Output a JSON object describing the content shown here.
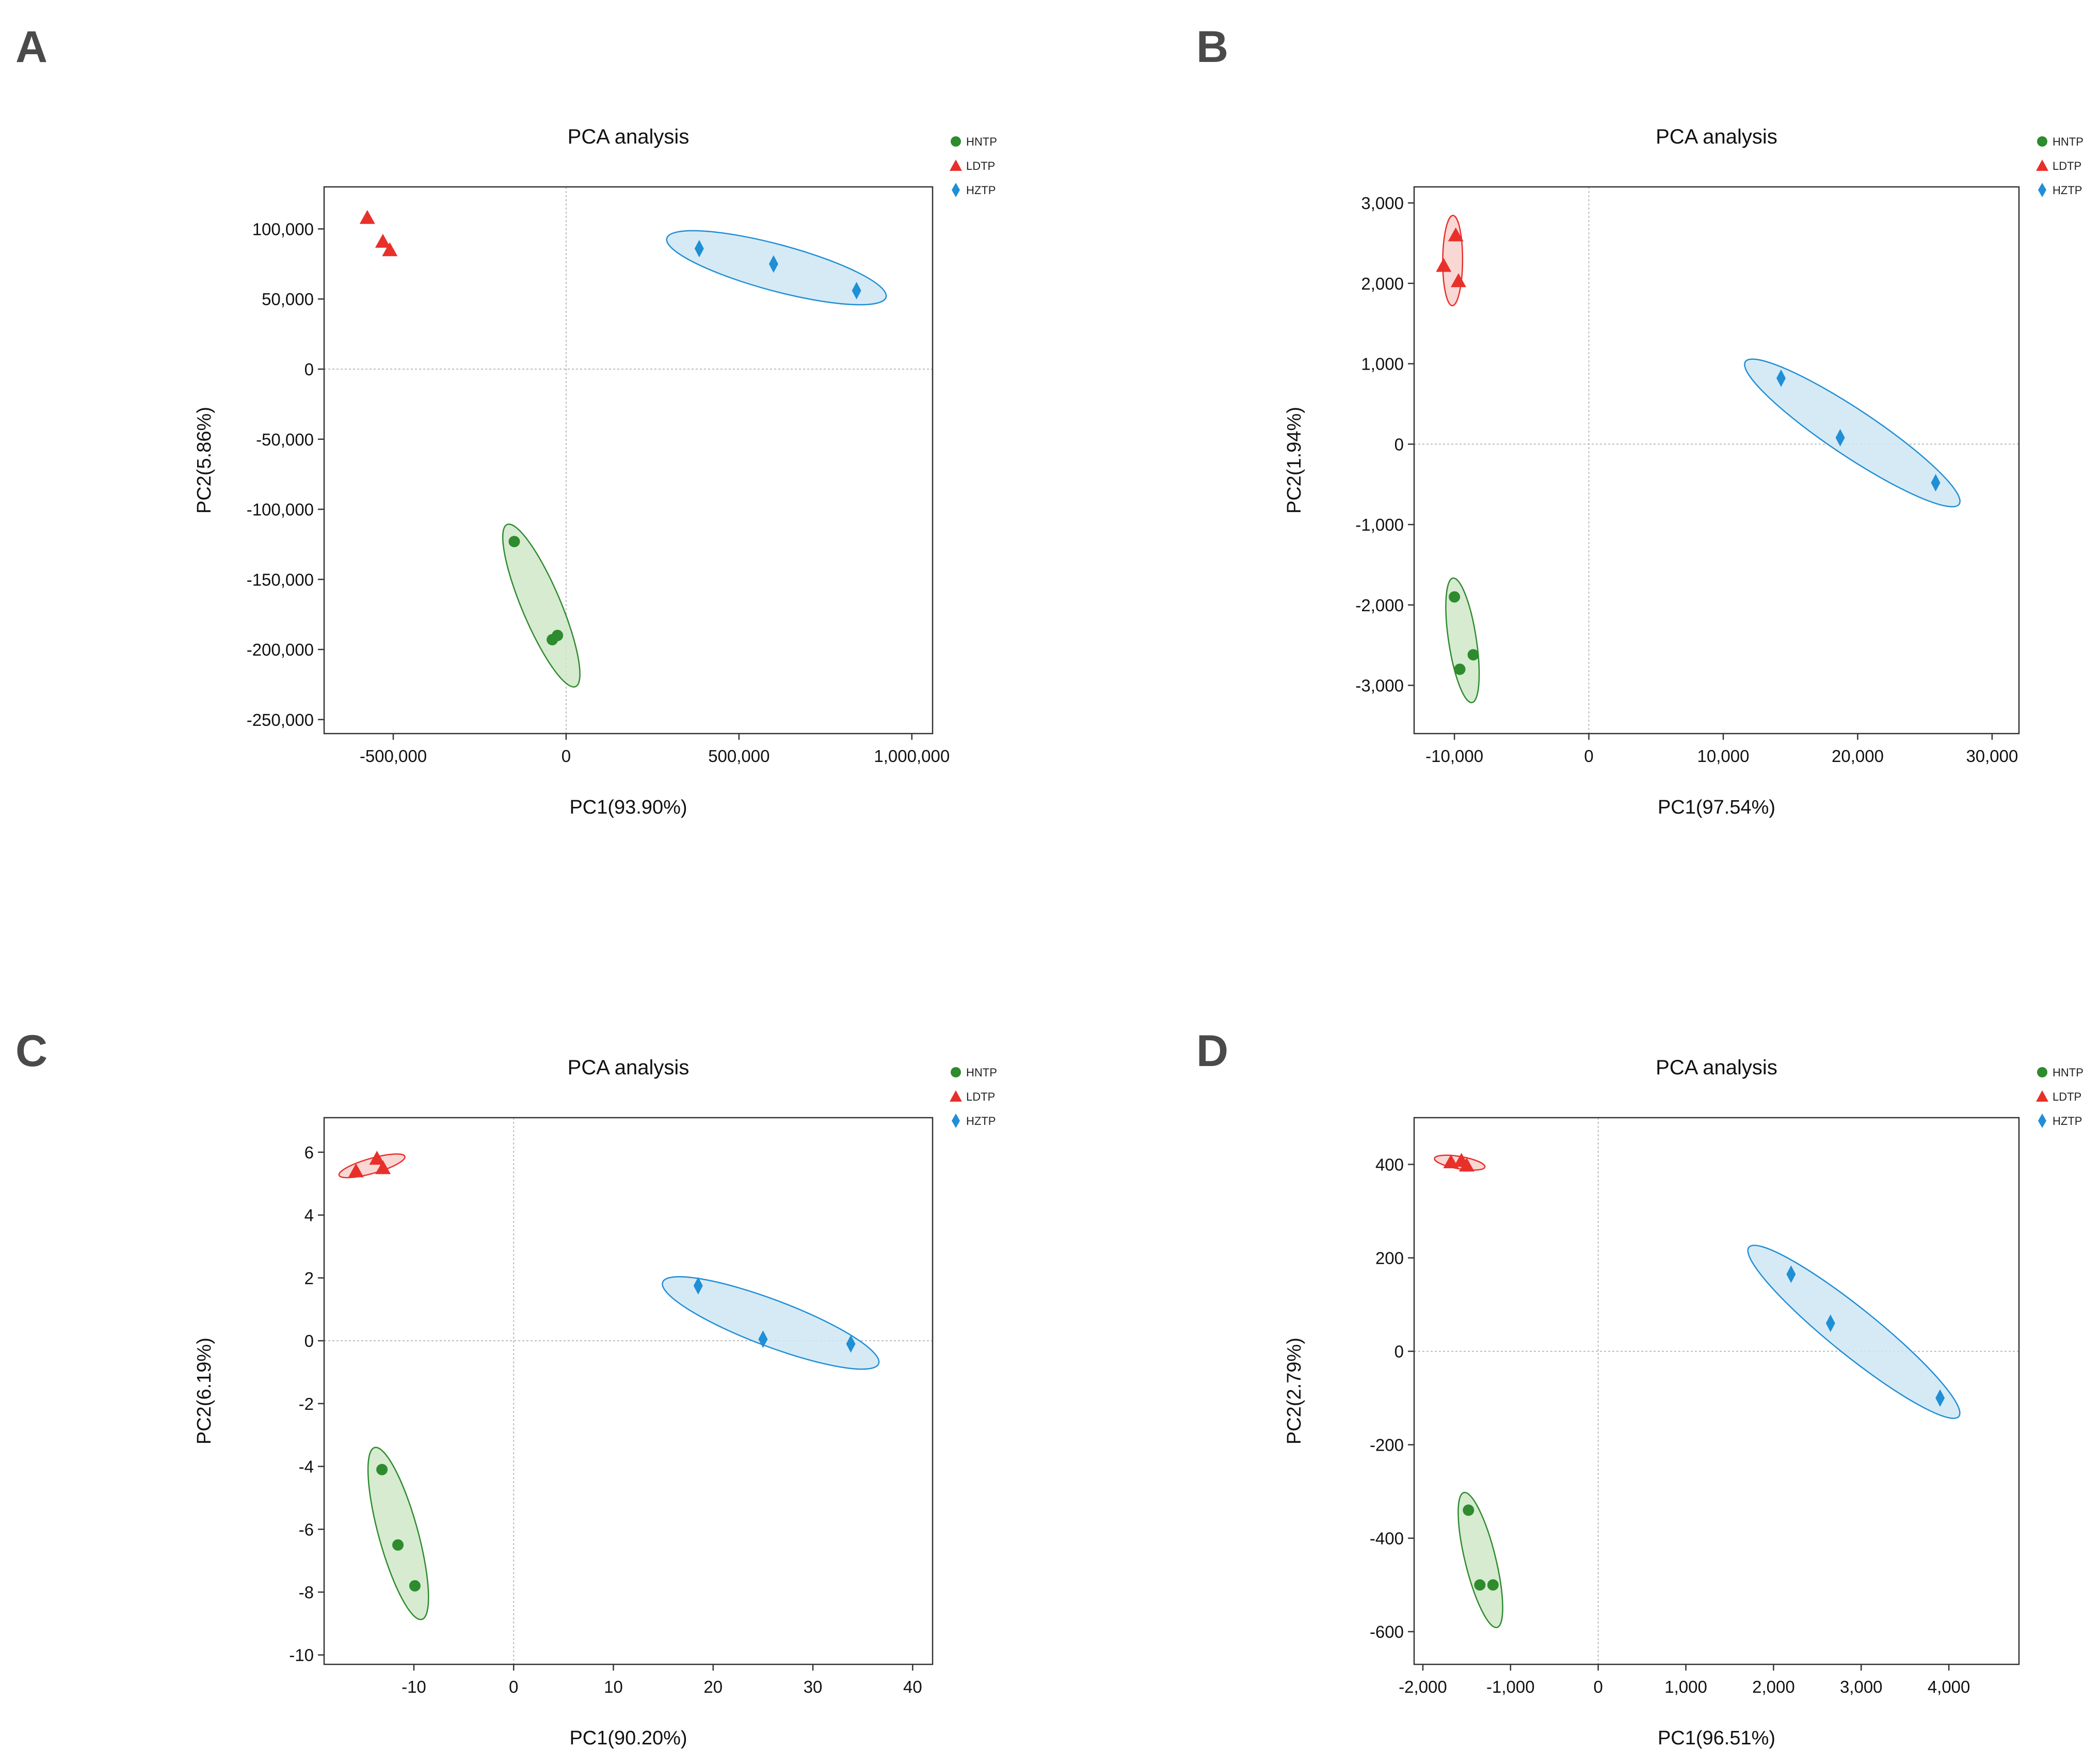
{
  "figure": {
    "panel_letters": [
      "A",
      "B",
      "C",
      "D"
    ]
  },
  "chart_data": [
    {
      "type": "scatter",
      "panel": "A",
      "title": "PCA analysis",
      "xlabel": "PC1(93.90%)",
      "ylabel": "PC2(5.86%)",
      "xlim": [
        -700000,
        1060000
      ],
      "ylim": [
        -260000,
        130000
      ],
      "xticks": [
        -500000,
        0,
        500000,
        1000000
      ],
      "xtick_labels": [
        "-500,000",
        "0",
        "500,000",
        "1,000,000"
      ],
      "yticks": [
        100000,
        50000,
        0,
        -50000,
        -100000,
        -150000,
        -200000,
        -250000
      ],
      "ytick_labels": [
        "100,000",
        "50,000",
        "0",
        "-50,000",
        "-100,000",
        "-150,000",
        "-200,000",
        "-250,000"
      ],
      "grid": false,
      "zero_lines": true,
      "legend": "top-right",
      "series": [
        {
          "name": "HNTP",
          "marker": "circle",
          "color": "#2e8b2e",
          "fill": "#cfe8c8",
          "points": [
            [
              -150000,
              -123000
            ],
            [
              -40000,
              -193000
            ],
            [
              -25000,
              -190000
            ]
          ],
          "ellipse": {
            "cx": -90000,
            "cy": -165000,
            "rx": 110000,
            "ry": 6000,
            "angle_deg": 65
          }
        },
        {
          "name": "LDTP",
          "marker": "triangle",
          "color": "#e8302a",
          "fill": "#f8d0cc",
          "points": [
            [
              -575000,
              108000
            ],
            [
              -530000,
              91000
            ],
            [
              -510000,
              85000
            ]
          ],
          "ellipse": null
        },
        {
          "name": "HZTP",
          "marker": "diamond",
          "color": "#1f8fd6",
          "fill": "#cfe6f5",
          "points": [
            [
              385000,
              86000
            ],
            [
              600000,
              75000
            ],
            [
              840000,
              56000
            ]
          ],
          "ellipse": {
            "cx": 610000,
            "cy": 72000,
            "rx": 280000,
            "ry": 3000,
            "angle_deg": -5
          }
        }
      ]
    },
    {
      "type": "scatter",
      "panel": "B",
      "title": "PCA analysis",
      "xlabel": "PC1(97.54%)",
      "ylabel": "PC2(1.94%)",
      "xlim": [
        -13000,
        32000
      ],
      "ylim": [
        -3600,
        3200
      ],
      "xticks": [
        -10000,
        0,
        10000,
        20000,
        30000
      ],
      "xtick_labels": [
        "-10,000",
        "0",
        "10,000",
        "20,000",
        "30,000"
      ],
      "yticks": [
        3000,
        2000,
        1000,
        0,
        -1000,
        -2000,
        -3000
      ],
      "ytick_labels": [
        "3,000",
        "2,000",
        "1,000",
        "0",
        "-1,000",
        "-2,000",
        "-3,000"
      ],
      "grid": false,
      "zero_lines": true,
      "legend": "top-right",
      "series": [
        {
          "name": "HNTP",
          "marker": "circle",
          "color": "#2e8b2e",
          "fill": "#cfe8c8",
          "points": [
            [
              -10000,
              -1900
            ],
            [
              -9600,
              -2800
            ],
            [
              -8600,
              -2620
            ]
          ],
          "ellipse": {
            "cx": -9400,
            "cy": -2450,
            "rx": 950,
            "ry": 600,
            "angle_deg": 0
          }
        },
        {
          "name": "LDTP",
          "marker": "triangle",
          "color": "#e8302a",
          "fill": "#f8d0cc",
          "points": [
            [
              -10800,
              2220
            ],
            [
              -9900,
              2600
            ],
            [
              -9700,
              2030
            ]
          ],
          "ellipse": {
            "cx": -10000,
            "cy": 2300,
            "rx": 380,
            "ry": 400,
            "angle_deg": 0
          }
        },
        {
          "name": "HZTP",
          "marker": "diamond",
          "color": "#1f8fd6",
          "fill": "#cfe6f5",
          "points": [
            [
              14300,
              820
            ],
            [
              18700,
              80
            ],
            [
              25800,
              -480
            ]
          ],
          "ellipse": {
            "cx": 19400,
            "cy": 100,
            "rx": 8200,
            "ry": 160,
            "angle_deg": -8
          }
        }
      ]
    },
    {
      "type": "scatter",
      "panel": "C",
      "title": "PCA analysis",
      "xlabel": "PC1(90.20%)",
      "ylabel": "PC2(6.19%)",
      "xlim": [
        -19,
        42
      ],
      "ylim": [
        -10.3,
        7.1
      ],
      "xticks": [
        -10,
        0,
        10,
        20,
        30,
        40
      ],
      "xtick_labels": [
        "-10",
        "0",
        "10",
        "20",
        "30",
        "40"
      ],
      "yticks": [
        6,
        4,
        2,
        0,
        -2,
        -4,
        -6,
        -8,
        -10
      ],
      "ytick_labels": [
        "6",
        "4",
        "2",
        "0",
        "-2",
        "-4",
        "-6",
        "-8",
        "-10"
      ],
      "grid": false,
      "zero_lines": true,
      "legend": "top-right",
      "series": [
        {
          "name": "HNTP",
          "marker": "circle",
          "color": "#2e8b2e",
          "fill": "#cfe8c8",
          "points": [
            [
              -13.2,
              -4.1
            ],
            [
              -11.6,
              -6.5
            ],
            [
              -9.9,
              -7.8
            ]
          ],
          "ellipse": {
            "cx": -11.8,
            "cy": -6.0,
            "rx": 2.2,
            "ry": 0.12,
            "angle_deg": 0
          }
        },
        {
          "name": "LDTP",
          "marker": "triangle",
          "color": "#e8302a",
          "fill": "#f8d0cc",
          "points": [
            [
              -15.8,
              5.4
            ],
            [
              -13.7,
              5.8
            ],
            [
              -13.1,
              5.5
            ]
          ],
          "ellipse": {
            "cx": -14.2,
            "cy": 5.6,
            "rx": 1.9,
            "ry": 0.18,
            "angle_deg": 0
          }
        },
        {
          "name": "HZTP",
          "marker": "diamond",
          "color": "#1f8fd6",
          "fill": "#cfe6f5",
          "points": [
            [
              18.5,
              1.75
            ],
            [
              25.0,
              0.05
            ],
            [
              33.8,
              -0.1
            ]
          ],
          "ellipse": {
            "cx": 25.9,
            "cy": 0.55,
            "rx": 9.6,
            "ry": 0.7,
            "angle_deg": 0
          }
        }
      ]
    },
    {
      "type": "scatter",
      "panel": "D",
      "title": "PCA analysis",
      "xlabel": "PC1(96.51%)",
      "ylabel": "PC2(2.79%)",
      "xlim": [
        -2100,
        4800
      ],
      "ylim": [
        -670,
        500
      ],
      "xticks": [
        -2000,
        -1000,
        0,
        1000,
        2000,
        3000,
        4000
      ],
      "xtick_labels": [
        "-2,000",
        "-1,000",
        "0",
        "1,000",
        "2,000",
        "3,000",
        "4,000"
      ],
      "yticks": [
        400,
        200,
        0,
        -200,
        -400,
        -600
      ],
      "ytick_labels": [
        "400",
        "200",
        "0",
        "-200",
        "-400",
        "-600"
      ],
      "grid": false,
      "zero_lines": true,
      "legend": "top-right",
      "series": [
        {
          "name": "HNTP",
          "marker": "circle",
          "color": "#2e8b2e",
          "fill": "#cfe8c8",
          "points": [
            [
              -1480,
              -340
            ],
            [
              -1350,
              -500
            ],
            [
              -1200,
              -500
            ]
          ],
          "ellipse": {
            "cx": -1350,
            "cy": -450,
            "rx": 180,
            "ry": 12,
            "angle_deg": 0
          }
        },
        {
          "name": "LDTP",
          "marker": "triangle",
          "color": "#e8302a",
          "fill": "#f8d0cc",
          "points": [
            [
              -1680,
              405
            ],
            [
              -1560,
              408
            ],
            [
              -1500,
              398
            ]
          ],
          "ellipse": {
            "cx": -1580,
            "cy": 405,
            "rx": 120,
            "ry": 5,
            "angle_deg": 0
          }
        },
        {
          "name": "HZTP",
          "marker": "diamond",
          "color": "#1f8fd6",
          "fill": "#cfe6f5",
          "points": [
            [
              2200,
              165
            ],
            [
              2650,
              60
            ],
            [
              3900,
              -100
            ]
          ],
          "ellipse": {
            "cx": 2900,
            "cy": 30,
            "rx": 1200,
            "ry": 14,
            "angle_deg": 0
          }
        }
      ]
    }
  ]
}
